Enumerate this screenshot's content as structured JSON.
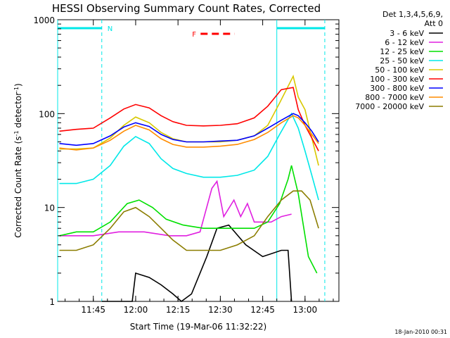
{
  "chart_data": {
    "type": "line",
    "title": "HESSI Observing Summary Count Rates, Corrected",
    "xlabel": "Start Time (19-Mar-06 11:32:22)",
    "ylabel_main": "Corrected Count Rate (s",
    "ylabel_sup1": "-1",
    "ylabel_mid": " detector",
    "ylabel_sup2": "-1",
    "ylabel_end": ")",
    "yscale": "log",
    "ylim": [
      1,
      1000
    ],
    "xlim": [
      "11:32:22",
      "13:12"
    ],
    "x_ticks": [
      "11:45",
      "12:00",
      "12:15",
      "12:30",
      "12:45",
      "13:00"
    ],
    "y_ticks": [
      "1",
      "10",
      "100",
      "1000"
    ],
    "legend": {
      "line1": "Det 1,3,4,5,6,9,",
      "line2": "Att 0",
      "entries": [
        {
          "label": "3 - 6 keV",
          "color": "#000000"
        },
        {
          "label": "6 - 12 keV",
          "color": "#e020e0"
        },
        {
          "label": "12 - 25 keV",
          "color": "#00e000"
        },
        {
          "label": "25 - 50 keV",
          "color": "#00e8e8"
        },
        {
          "label": "50 - 100 keV",
          "color": "#d8c800"
        },
        {
          "label": "100 - 300 keV",
          "color": "#ff0000"
        },
        {
          "label": "300 - 800 keV",
          "color": "#0000ff"
        },
        {
          "label": "800 - 7000 keV",
          "color": "#ff8c00"
        },
        {
          "label": "7000 - 20000 keV",
          "color": "#8b7d00"
        }
      ]
    },
    "annotations": {
      "night_label": "N",
      "flare_label": "F",
      "date_stamp": "18-Jan-2010 00:31"
    },
    "night_periods": [
      [
        "11:32:22",
        "11:48"
      ],
      [
        "12:50",
        "13:07"
      ]
    ],
    "flare_interval": [
      "12:23",
      "12:35"
    ],
    "series": [
      {
        "name": "3 - 6 keV",
        "color": "#000000",
        "points": [
          [
            11.8,
            1.0
          ],
          [
            11.98,
            1.0
          ],
          [
            12.0,
            2.0
          ],
          [
            12.08,
            1.8
          ],
          [
            12.15,
            1.5
          ],
          [
            12.22,
            1.2
          ],
          [
            12.27,
            1.0
          ],
          [
            12.33,
            1.2
          ],
          [
            12.42,
            3.0
          ],
          [
            12.48,
            6.0
          ],
          [
            12.55,
            6.5
          ],
          [
            12.65,
            4.0
          ],
          [
            12.75,
            3.0
          ],
          [
            12.86,
            3.5
          ],
          [
            12.9,
            3.5
          ],
          [
            12.92,
            1.0
          ]
        ]
      },
      {
        "name": "6 - 12 keV",
        "color": "#e020e0",
        "points": [
          [
            11.55,
            5.0
          ],
          [
            11.75,
            5.0
          ],
          [
            11.9,
            5.5
          ],
          [
            12.05,
            5.5
          ],
          [
            12.2,
            5.0
          ],
          [
            12.3,
            5.0
          ],
          [
            12.38,
            5.5
          ],
          [
            12.45,
            16.0
          ],
          [
            12.48,
            19.0
          ],
          [
            12.52,
            8.0
          ],
          [
            12.58,
            12.0
          ],
          [
            12.62,
            8.0
          ],
          [
            12.66,
            11.0
          ],
          [
            12.7,
            7.0
          ],
          [
            12.8,
            7.0
          ],
          [
            12.86,
            8.0
          ],
          [
            12.92,
            8.5
          ]
        ]
      },
      {
        "name": "12 - 25 keV",
        "color": "#00e000",
        "points": [
          [
            11.55,
            5.0
          ],
          [
            11.65,
            5.5
          ],
          [
            11.75,
            5.5
          ],
          [
            11.85,
            7.0
          ],
          [
            11.95,
            11.0
          ],
          [
            12.02,
            12.0
          ],
          [
            12.1,
            10.0
          ],
          [
            12.18,
            7.5
          ],
          [
            12.28,
            6.5
          ],
          [
            12.4,
            6.0
          ],
          [
            12.5,
            6.0
          ],
          [
            12.6,
            6.0
          ],
          [
            12.7,
            6.0
          ],
          [
            12.78,
            7.0
          ],
          [
            12.85,
            11.0
          ],
          [
            12.9,
            20.0
          ],
          [
            12.92,
            28.0
          ],
          [
            12.96,
            14.0
          ],
          [
            13.0,
            5.0
          ],
          [
            13.02,
            3.0
          ],
          [
            13.07,
            2.0
          ]
        ]
      },
      {
        "name": "25 - 50 keV",
        "color": "#00e8e8",
        "points": [
          [
            11.55,
            18.0
          ],
          [
            11.65,
            18.0
          ],
          [
            11.75,
            20.0
          ],
          [
            11.85,
            28.0
          ],
          [
            11.93,
            45.0
          ],
          [
            12.0,
            57.0
          ],
          [
            12.08,
            48.0
          ],
          [
            12.15,
            33.0
          ],
          [
            12.22,
            26.0
          ],
          [
            12.3,
            23.0
          ],
          [
            12.4,
            21.0
          ],
          [
            12.5,
            21.0
          ],
          [
            12.6,
            22.0
          ],
          [
            12.7,
            25.0
          ],
          [
            12.78,
            35.0
          ],
          [
            12.85,
            60.0
          ],
          [
            12.92,
            100.0
          ],
          [
            12.96,
            70.0
          ],
          [
            13.0,
            40.0
          ],
          [
            13.04,
            22.0
          ],
          [
            13.08,
            12.0
          ]
        ]
      },
      {
        "name": "50 - 100 keV",
        "color": "#d8c800",
        "points": [
          [
            11.55,
            42.0
          ],
          [
            11.65,
            42.0
          ],
          [
            11.75,
            43.0
          ],
          [
            11.85,
            55.0
          ],
          [
            11.93,
            75.0
          ],
          [
            12.0,
            92.0
          ],
          [
            12.08,
            80.0
          ],
          [
            12.15,
            63.0
          ],
          [
            12.22,
            54.0
          ],
          [
            12.3,
            50.0
          ],
          [
            12.4,
            50.0
          ],
          [
            12.5,
            50.0
          ],
          [
            12.6,
            52.0
          ],
          [
            12.7,
            58.0
          ],
          [
            12.78,
            75.0
          ],
          [
            12.85,
            130.0
          ],
          [
            12.93,
            250.0
          ],
          [
            12.96,
            150.0
          ],
          [
            13.0,
            110.0
          ],
          [
            13.04,
            55.0
          ],
          [
            13.08,
            28.0
          ]
        ]
      },
      {
        "name": "100 - 300 keV",
        "color": "#ff0000",
        "points": [
          [
            11.55,
            65.0
          ],
          [
            11.65,
            68.0
          ],
          [
            11.75,
            70.0
          ],
          [
            11.85,
            90.0
          ],
          [
            11.93,
            112.0
          ],
          [
            12.0,
            125.0
          ],
          [
            12.08,
            115.0
          ],
          [
            12.15,
            95.0
          ],
          [
            12.22,
            82.0
          ],
          [
            12.3,
            75.0
          ],
          [
            12.4,
            74.0
          ],
          [
            12.5,
            75.0
          ],
          [
            12.6,
            78.0
          ],
          [
            12.7,
            90.0
          ],
          [
            12.78,
            120.0
          ],
          [
            12.86,
            180.0
          ],
          [
            12.93,
            190.0
          ],
          [
            12.96,
            110.0
          ],
          [
            13.0,
            75.0
          ],
          [
            13.04,
            55.0
          ],
          [
            13.08,
            40.0
          ]
        ]
      },
      {
        "name": "300 - 800 keV",
        "color": "#0000ff",
        "points": [
          [
            11.55,
            48.0
          ],
          [
            11.65,
            46.0
          ],
          [
            11.75,
            48.0
          ],
          [
            11.85,
            58.0
          ],
          [
            11.93,
            72.0
          ],
          [
            12.0,
            80.0
          ],
          [
            12.08,
            73.0
          ],
          [
            12.15,
            60.0
          ],
          [
            12.22,
            53.0
          ],
          [
            12.3,
            50.0
          ],
          [
            12.4,
            50.0
          ],
          [
            12.5,
            51.0
          ],
          [
            12.6,
            52.0
          ],
          [
            12.7,
            58.0
          ],
          [
            12.78,
            70.0
          ],
          [
            12.86,
            85.0
          ],
          [
            12.93,
            100.0
          ],
          [
            12.96,
            95.0
          ],
          [
            13.0,
            80.0
          ],
          [
            13.04,
            65.0
          ],
          [
            13.08,
            50.0
          ]
        ]
      },
      {
        "name": "800 - 7000 keV",
        "color": "#ff8c00",
        "points": [
          [
            11.55,
            43.0
          ],
          [
            11.65,
            41.0
          ],
          [
            11.75,
            43.0
          ],
          [
            11.85,
            52.0
          ],
          [
            11.93,
            65.0
          ],
          [
            12.0,
            75.0
          ],
          [
            12.08,
            67.0
          ],
          [
            12.15,
            54.0
          ],
          [
            12.22,
            47.0
          ],
          [
            12.3,
            44.0
          ],
          [
            12.4,
            44.0
          ],
          [
            12.5,
            45.0
          ],
          [
            12.6,
            47.0
          ],
          [
            12.7,
            53.0
          ],
          [
            12.78,
            63.0
          ],
          [
            12.86,
            80.0
          ],
          [
            12.93,
            95.0
          ],
          [
            12.96,
            90.0
          ],
          [
            13.0,
            75.0
          ],
          [
            13.04,
            60.0
          ],
          [
            13.08,
            48.0
          ]
        ]
      },
      {
        "name": "7000 - 20000 keV",
        "color": "#8b7d00",
        "points": [
          [
            11.55,
            3.5
          ],
          [
            11.65,
            3.5
          ],
          [
            11.75,
            4.0
          ],
          [
            11.85,
            6.0
          ],
          [
            11.93,
            9.0
          ],
          [
            12.0,
            10.0
          ],
          [
            12.08,
            8.0
          ],
          [
            12.15,
            6.0
          ],
          [
            12.22,
            4.5
          ],
          [
            12.3,
            3.5
          ],
          [
            12.4,
            3.5
          ],
          [
            12.5,
            3.5
          ],
          [
            12.6,
            4.0
          ],
          [
            12.7,
            5.0
          ],
          [
            12.78,
            8.0
          ],
          [
            12.86,
            12.0
          ],
          [
            12.93,
            15.0
          ],
          [
            12.98,
            15.0
          ],
          [
            13.03,
            12.0
          ],
          [
            13.08,
            6.0
          ]
        ]
      }
    ]
  }
}
